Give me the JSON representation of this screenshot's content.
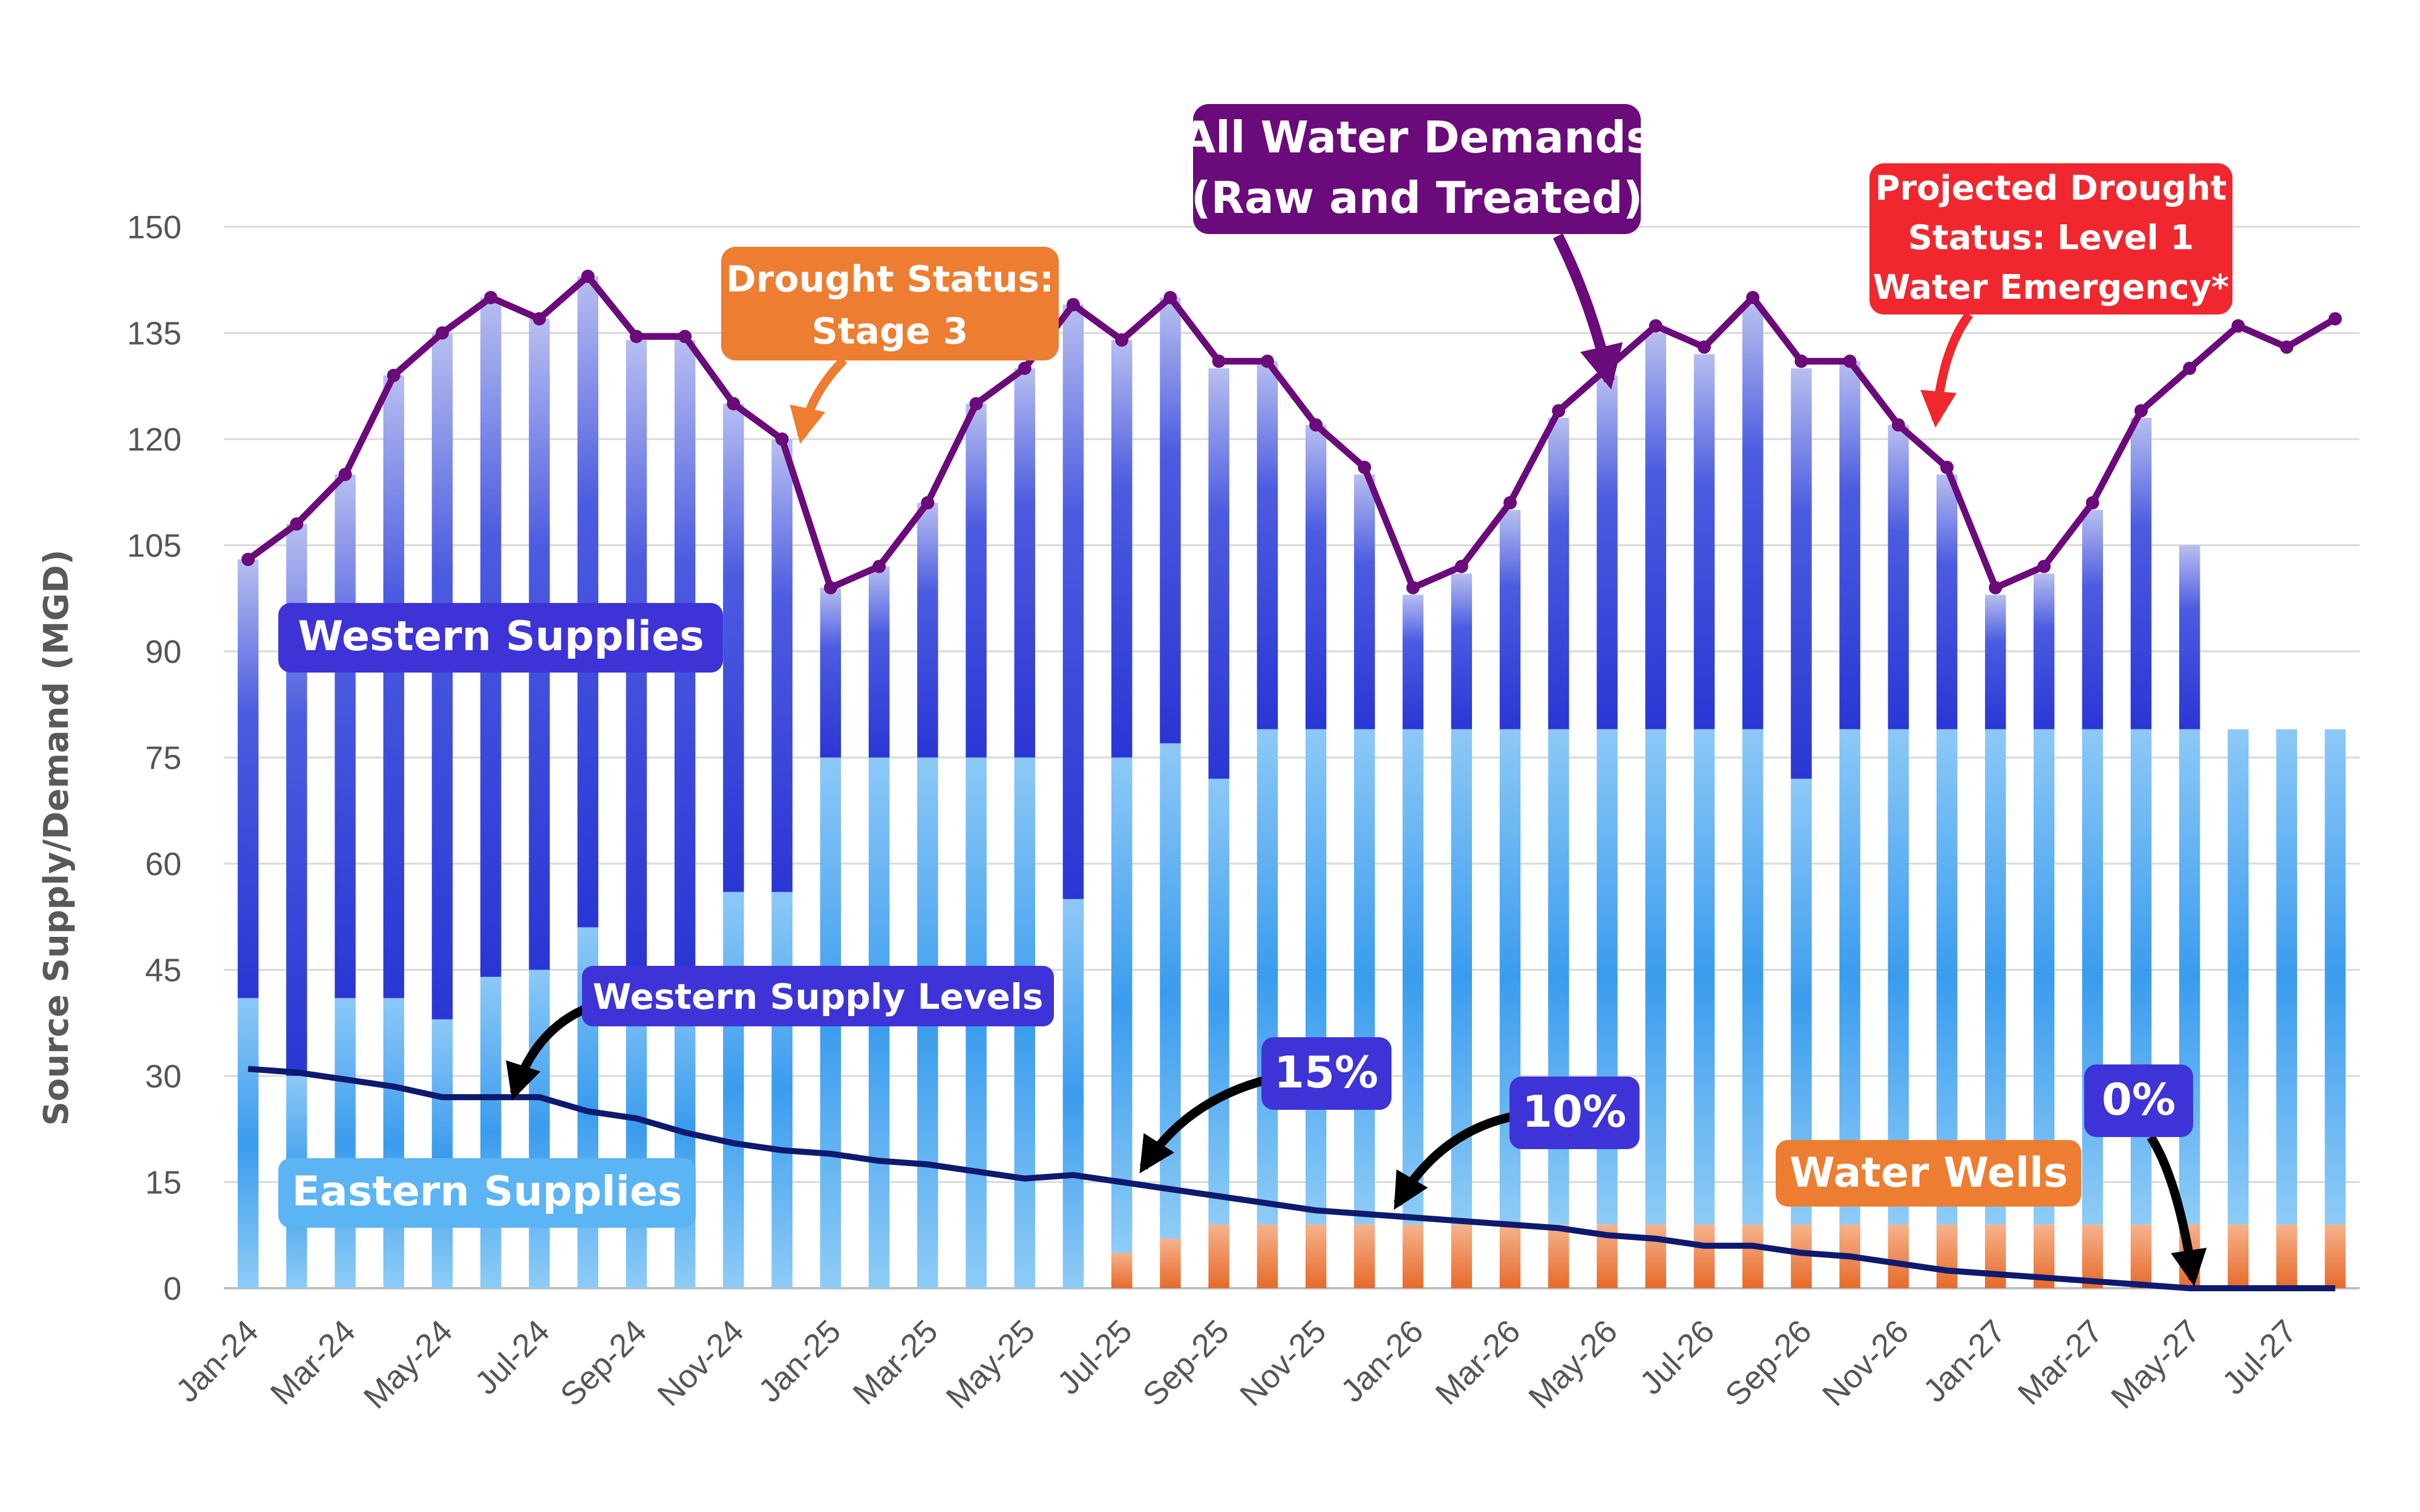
{
  "chart_data": {
    "type": "bar",
    "stacked": true,
    "title": "",
    "xlabel": "",
    "ylabel": "Source Supply/Demand (MGD)",
    "ylim": [
      0,
      150
    ],
    "yticks": [
      0,
      15,
      30,
      45,
      60,
      75,
      90,
      105,
      120,
      135,
      150
    ],
    "grid": true,
    "categories": [
      "Jan-24",
      "Feb-24",
      "Mar-24",
      "Apr-24",
      "May-24",
      "Jun-24",
      "Jul-24",
      "Aug-24",
      "Sep-24",
      "Oct-24",
      "Nov-24",
      "Dec-24",
      "Jan-25",
      "Feb-25",
      "Mar-25",
      "Apr-25",
      "May-25",
      "Jun-25",
      "Jul-25",
      "Aug-25",
      "Sep-25",
      "Oct-25",
      "Nov-25",
      "Dec-25",
      "Jan-26",
      "Feb-26",
      "Mar-26",
      "Apr-26",
      "May-26",
      "Jun-26",
      "Jul-26",
      "Aug-26",
      "Sep-26",
      "Oct-26",
      "Nov-26",
      "Dec-26",
      "Jan-27",
      "Feb-27",
      "Mar-27",
      "Apr-27",
      "May-27",
      "Jun-27",
      "Jul-27",
      "Aug-27"
    ],
    "tick_labels": [
      "Jan-24",
      "Mar-24",
      "May-24",
      "Jul-24",
      "Sep-24",
      "Nov-24",
      "Jan-25",
      "Mar-25",
      "May-25",
      "Jul-25",
      "Sep-25",
      "Nov-25",
      "Jan-26",
      "Mar-26",
      "May-26",
      "Jul-26",
      "Sep-26",
      "Nov-26",
      "Jan-27",
      "Mar-27",
      "May-27",
      "Jul-27"
    ],
    "series": [
      {
        "name": "Water Wells",
        "color": "#ED7D31",
        "values": [
          0,
          0,
          0,
          0,
          0,
          0,
          0,
          0,
          0,
          0,
          0,
          0,
          0,
          0,
          0,
          0,
          0,
          0,
          5,
          7,
          9,
          9,
          9,
          9,
          9,
          9,
          9,
          9,
          9,
          9,
          9,
          9,
          9,
          9,
          9,
          9,
          9,
          9,
          9,
          9,
          9,
          9,
          9,
          9
        ]
      },
      {
        "name": "Eastern Supplies",
        "color": "#3AA0F0",
        "values": [
          41,
          30,
          41,
          41,
          38,
          44,
          45,
          51,
          45,
          45,
          56,
          56,
          75,
          75,
          75,
          75,
          75,
          55,
          70,
          70,
          63,
          70,
          70,
          70,
          70,
          70,
          70,
          70,
          70,
          70,
          70,
          70,
          63,
          70,
          70,
          70,
          70,
          70,
          70,
          70,
          70,
          70,
          70,
          70
        ]
      },
      {
        "name": "Western Supplies",
        "color": "#2E3FDB",
        "values": [
          62,
          78,
          74,
          88,
          97,
          96,
          92,
          92,
          89,
          89,
          69,
          64,
          24,
          27,
          36,
          50,
          55,
          84,
          59,
          63,
          58,
          52,
          43,
          36,
          19,
          22,
          31,
          44,
          50,
          56,
          53,
          60,
          58,
          52,
          43,
          36,
          19,
          22,
          31,
          44,
          26,
          0,
          0,
          0
        ]
      }
    ],
    "lines": [
      {
        "name": "All Water Demands (Raw and Treated)",
        "color": "#6B0A7A",
        "values": [
          103,
          108,
          115,
          129,
          135,
          140,
          137,
          143,
          134.5,
          134.5,
          125,
          120,
          99,
          102,
          111,
          125,
          130,
          139,
          134,
          140,
          131,
          131,
          122,
          116,
          99,
          102,
          111,
          124,
          130,
          136,
          133,
          140,
          131,
          131,
          122,
          116,
          99,
          102,
          111,
          124,
          130,
          136,
          133,
          137
        ]
      },
      {
        "name": "Western Supply Levels",
        "color": "#0E1A6E",
        "values": [
          31,
          30.5,
          29.5,
          28.5,
          27,
          27,
          27,
          25,
          24,
          22,
          20.5,
          19.5,
          19,
          18,
          17.5,
          16.5,
          15.5,
          16,
          15,
          14,
          13,
          12,
          11,
          10.5,
          10,
          9.5,
          9,
          8.5,
          7.5,
          7,
          6,
          6,
          5,
          4.5,
          3.5,
          2.5,
          2,
          1.5,
          1,
          0.5,
          0,
          0,
          0,
          0
        ]
      }
    ],
    "annotations": [
      {
        "text": "Western Supplies",
        "color": "#3E33D6"
      },
      {
        "text": "Eastern Supplies",
        "color": "#5BB4F4"
      },
      {
        "text": "Western Supply Levels",
        "color": "#3E33D6"
      },
      {
        "text": "15%",
        "color": "#3E33D6"
      },
      {
        "text": "10%",
        "color": "#3E33D6"
      },
      {
        "text": "0%",
        "color": "#3E33D6"
      },
      {
        "text": "Water Wells",
        "color": "#ED7D31"
      },
      {
        "lines": [
          "Drought Status:",
          "Stage 3"
        ],
        "color": "#ED7D31"
      },
      {
        "lines": [
          "All Water Demands",
          "(Raw and Treated)"
        ],
        "color": "#6B0A7A"
      },
      {
        "lines": [
          "Projected Drought",
          "Status: Level 1",
          "Water Emergency*"
        ],
        "color": "#F0272E"
      }
    ]
  }
}
